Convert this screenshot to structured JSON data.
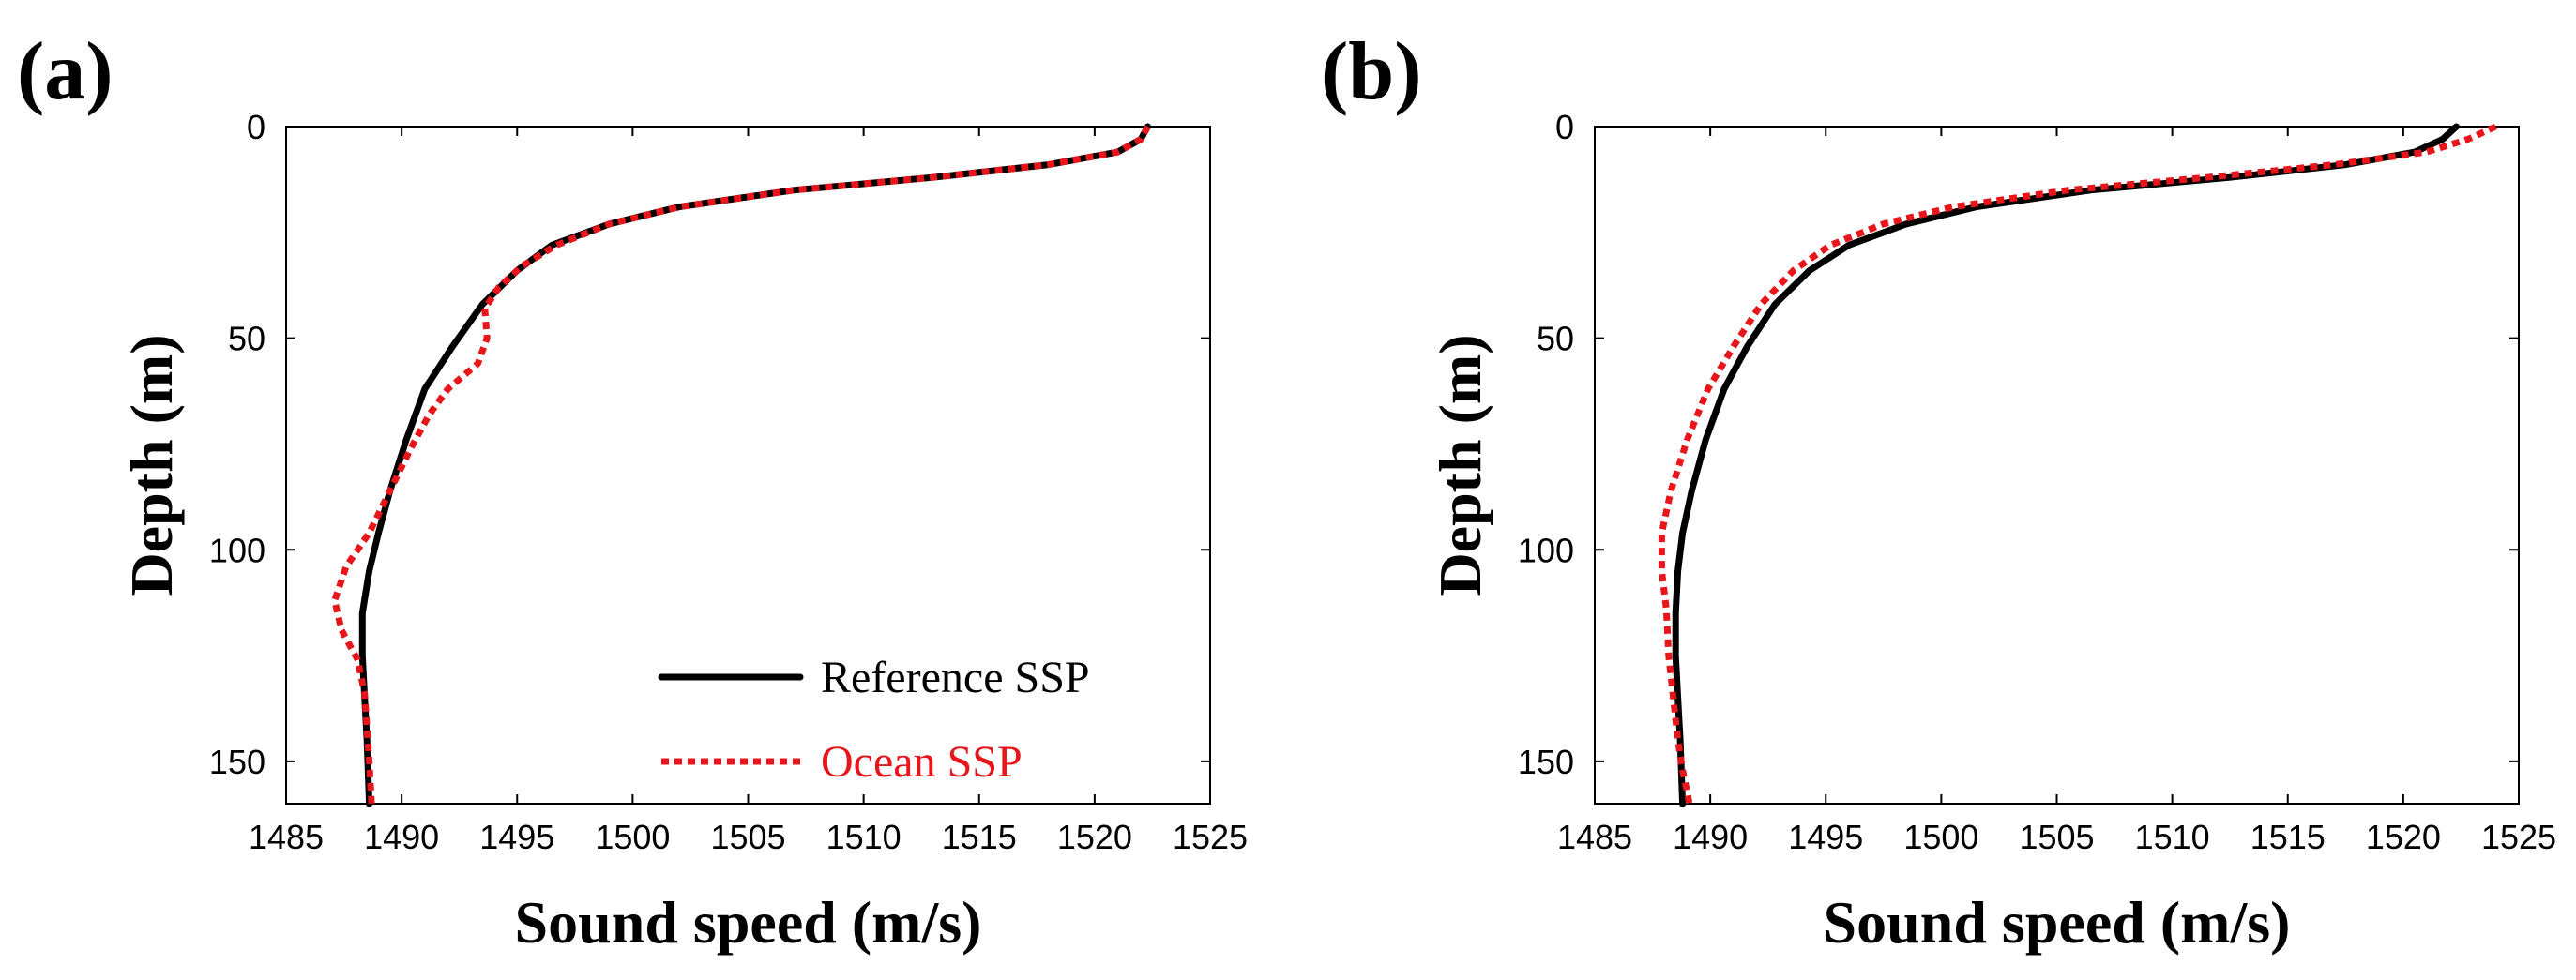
{
  "chart_data": [
    {
      "type": "line",
      "panel_label": "(a)",
      "xlabel": "Sound speed (m/s)",
      "ylabel": "Depth (m)",
      "xlim": [
        1485,
        1525
      ],
      "ylim": [
        0,
        160
      ],
      "y_reversed": true,
      "xticks": [
        1485,
        1490,
        1495,
        1500,
        1505,
        1510,
        1515,
        1520,
        1525
      ],
      "yticks": [
        0,
        50,
        100,
        150
      ],
      "legend": {
        "show": true,
        "placement": "bottom-right"
      },
      "series": [
        {
          "name": "Reference SSP",
          "color": "#000000",
          "style": "solid",
          "x": [
            1522.3,
            1522.0,
            1521.0,
            1518.0,
            1513.0,
            1507.0,
            1502.0,
            1499.0,
            1496.5,
            1495.0,
            1493.5,
            1492.2,
            1491.0,
            1490.2,
            1489.5,
            1489.0,
            1488.6,
            1488.3,
            1488.3,
            1488.4,
            1488.5,
            1488.6
          ],
          "y": [
            0,
            3,
            6,
            9,
            12,
            15,
            19,
            23,
            28,
            34,
            42,
            52,
            62,
            74,
            86,
            96,
            105,
            115,
            125,
            135,
            145,
            160
          ]
        },
        {
          "name": "Ocean SSP",
          "color": "#e8151b",
          "style": "dotted",
          "x": [
            1522.3,
            1522.0,
            1521.0,
            1518.0,
            1513.0,
            1507.0,
            1502.0,
            1499.0,
            1496.7,
            1495.2,
            1494.2,
            1493.6,
            1493.7,
            1493.3,
            1492.0,
            1491.2,
            1490.4,
            1489.5,
            1488.6,
            1487.6,
            1487.1,
            1487.4,
            1488.1,
            1488.4,
            1488.5,
            1488.6,
            1488.7
          ],
          "y": [
            0,
            3,
            6,
            9,
            12,
            15,
            19,
            23,
            28,
            33,
            38,
            43,
            50,
            56,
            62,
            68,
            76,
            86,
            96,
            104,
            112,
            119,
            126,
            134,
            142,
            150,
            160
          ]
        }
      ]
    },
    {
      "type": "line",
      "panel_label": "(b)",
      "xlabel": "Sound speed (m/s)",
      "ylabel": "Depth (m)",
      "xlim": [
        1485,
        1525
      ],
      "ylim": [
        0,
        160
      ],
      "y_reversed": true,
      "xticks": [
        1485,
        1490,
        1495,
        1500,
        1505,
        1510,
        1515,
        1520,
        1525
      ],
      "yticks": [
        0,
        50,
        100,
        150
      ],
      "legend": {
        "show": false
      },
      "series": [
        {
          "name": "Reference SSP",
          "color": "#000000",
          "style": "solid",
          "x": [
            1522.3,
            1521.7,
            1520.5,
            1517.5,
            1512.5,
            1506.5,
            1501.5,
            1498.5,
            1496.0,
            1494.3,
            1492.8,
            1491.6,
            1490.6,
            1489.8,
            1489.2,
            1488.8,
            1488.6,
            1488.5,
            1488.5,
            1488.6,
            1488.7,
            1488.8
          ],
          "y": [
            0,
            3,
            6,
            9,
            12,
            15,
            19,
            23,
            28,
            34,
            42,
            52,
            62,
            74,
            86,
            96,
            105,
            115,
            125,
            135,
            145,
            160
          ]
        },
        {
          "name": "Ocean SSP",
          "color": "#e8151b",
          "style": "dotted",
          "x": [
            1524.0,
            1522.8,
            1521.0,
            1517.0,
            1511.5,
            1505.5,
            1500.5,
            1497.5,
            1495.2,
            1493.6,
            1492.2,
            1491.0,
            1489.9,
            1489.0,
            1488.3,
            1487.9,
            1487.9,
            1488.1,
            1488.2,
            1488.4,
            1488.6,
            1488.8,
            1489.1
          ],
          "y": [
            0,
            3,
            6,
            9,
            12,
            15,
            19,
            23,
            28,
            34,
            42,
            52,
            62,
            74,
            86,
            96,
            105,
            114,
            125,
            135,
            145,
            152,
            160
          ]
        }
      ]
    }
  ]
}
